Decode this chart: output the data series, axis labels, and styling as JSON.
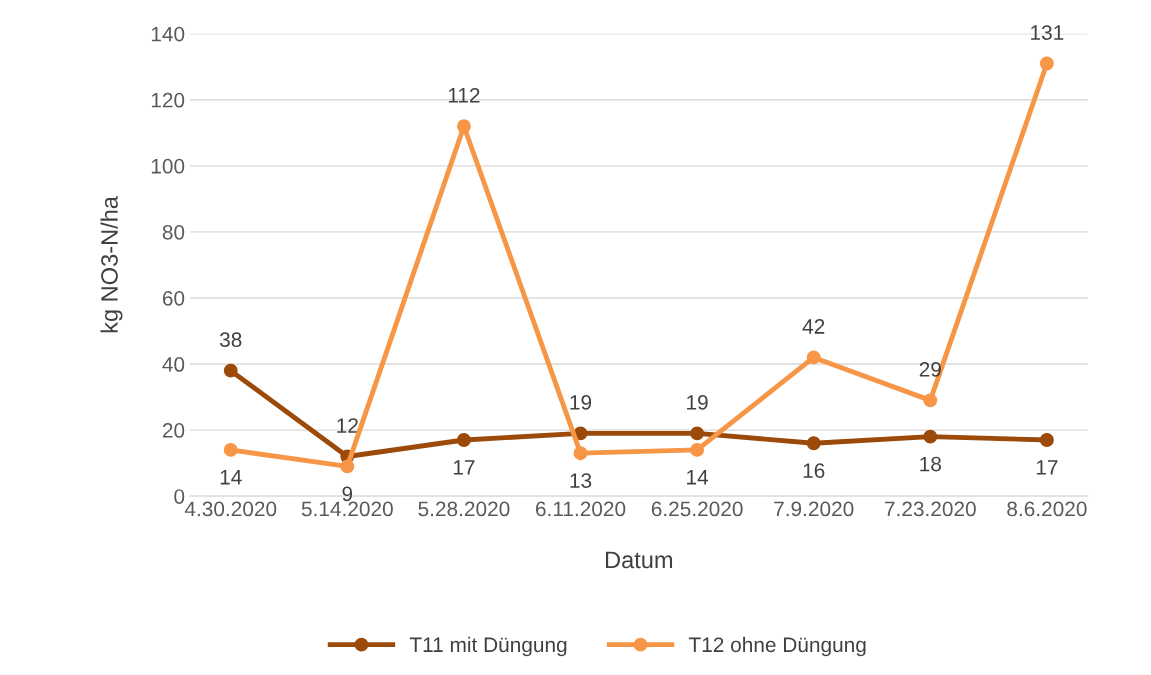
{
  "chart_data": {
    "type": "line",
    "xlabel": "Datum",
    "ylabel": "kg NO3-N/ha",
    "categories": [
      "4.30.2020",
      "5.14.2020",
      "5.28.2020",
      "6.11.2020",
      "6.25.2020",
      "7.9.2020",
      "7.23.2020",
      "8.6.2020"
    ],
    "series": [
      {
        "name": "T11 mit Düngung",
        "color": "#9c4a0a",
        "values": [
          38,
          12,
          17,
          19,
          19,
          16,
          18,
          17
        ]
      },
      {
        "name": "T12 ohne Düngung",
        "color": "#f79646",
        "values": [
          14,
          9,
          112,
          13,
          14,
          42,
          29,
          131
        ]
      }
    ],
    "ylim": [
      0,
      140
    ],
    "yticks": [
      0,
      20,
      40,
      60,
      80,
      100,
      120,
      140
    ],
    "grid": "y",
    "legend": "bottom",
    "marker": "circle",
    "line_style": "solid",
    "data_labels": true
  }
}
